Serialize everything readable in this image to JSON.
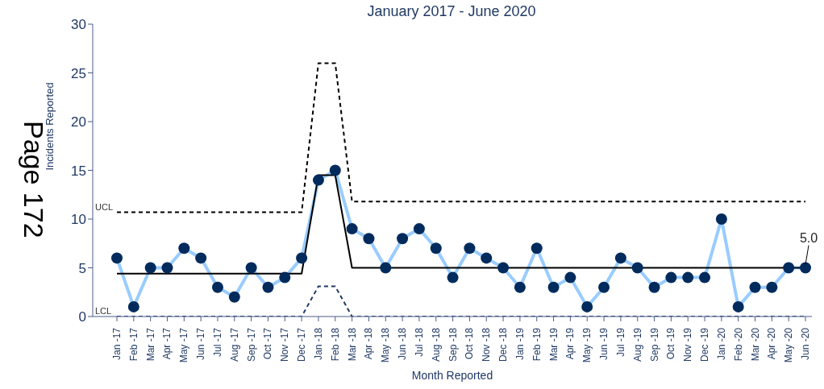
{
  "chart_data": {
    "type": "line",
    "title": "January 2017 - June 2020",
    "xlabel": "Month Reported",
    "ylabel": "Incidents Reported",
    "annotations": [
      "Page 172"
    ],
    "categories": [
      "Jan -17",
      "Feb -17",
      "Mar -17",
      "Apr -17",
      "May -17",
      "Jun -17",
      "Jul -17",
      "Aug -17",
      "Sep -17",
      "Oct -17",
      "Nov -17",
      "Dec -17",
      "Jan -18",
      "Feb -18",
      "Mar -18",
      "Apr -18",
      "May -18",
      "Jun -18",
      "Jul -18",
      "Aug -18",
      "Sep -18",
      "Oct -18",
      "Nov -18",
      "Dec -18",
      "Jan -19",
      "Feb -19",
      "Mar -19",
      "Apr -19",
      "May -19",
      "Jun -19",
      "Jul -19",
      "Aug -19",
      "Sep -19",
      "Oct -19",
      "Nov -19",
      "Dec -19",
      "Jan -20",
      "Feb -20",
      "Mar -20",
      "Apr -20",
      "May -20",
      "Jun -20"
    ],
    "series": [
      {
        "color": "#99ccff",
        "marker": "circle",
        "line_style": "solid",
        "colors": [
          "#002b5c",
          "#002b5c",
          "#002b5c",
          "#002b5c",
          "#002b5c",
          "#002b5c",
          "#002b5c",
          "#002b5c",
          "#002b5c",
          "#002b5c",
          "#002b5c",
          "#002b5c",
          "#002b5c",
          "#002b5c",
          "#002b5c",
          "#002b5c",
          "#002b5c",
          "#002b5c",
          "#002b5c",
          "#002b5c",
          "#002b5c",
          "#002b5c",
          "#002b5c",
          "#002b5c",
          "#002b5c",
          "#002b5c",
          "#002b5c",
          "#002b5c",
          "#002b5c",
          "#002b5c",
          "#002b5c",
          "#002b5c",
          "#002b5c",
          "#002b5c",
          "#002b5c",
          "#002b5c",
          "#002b5c",
          "#002b5c",
          "#002b5c",
          "#002b5c",
          "#002b5c",
          "#002b5c"
        ],
        "values": [
          6,
          1,
          5,
          5,
          7,
          6,
          3,
          2,
          5,
          3,
          4,
          6,
          14,
          15,
          9,
          8,
          5,
          8,
          9,
          7,
          4,
          7,
          6,
          5,
          3,
          7,
          3,
          4,
          1,
          3,
          6,
          5,
          3,
          4,
          4,
          4,
          10,
          1,
          3,
          3,
          5,
          5
        ]
      },
      {
        "color": "#000000",
        "marker": "none",
        "line_style": "solid",
        "values": [
          4.4,
          4.4,
          4.4,
          4.4,
          4.4,
          4.4,
          4.4,
          4.4,
          4.4,
          4.4,
          4.4,
          4.4,
          14.5,
          14.5,
          5.0,
          5.0,
          5.0,
          5.0,
          5.0,
          5.0,
          5.0,
          5.0,
          5.0,
          5.0,
          5.0,
          5.0,
          5.0,
          5.0,
          5.0,
          5.0,
          5.0,
          5.0,
          5.0,
          5.0,
          5.0,
          5.0,
          5.0,
          5.0,
          5.0,
          5.0,
          5.0,
          5.0
        ],
        "value_labels": [
          null,
          null,
          null,
          null,
          null,
          null,
          null,
          null,
          null,
          null,
          null,
          null,
          null,
          null,
          null,
          null,
          null,
          null,
          null,
          null,
          null,
          null,
          null,
          null,
          null,
          null,
          null,
          null,
          null,
          null,
          null,
          null,
          null,
          null,
          null,
          null,
          null,
          null,
          null,
          null,
          null,
          "5.0"
        ]
      },
      {
        "name": "UCL",
        "color": "#000000",
        "marker": "none",
        "line_style": "dashed",
        "values": [
          10.7,
          10.7,
          10.7,
          10.7,
          10.7,
          10.7,
          10.7,
          10.7,
          10.7,
          10.7,
          10.7,
          10.7,
          26,
          26,
          11.8,
          11.8,
          11.8,
          11.8,
          11.8,
          11.8,
          11.8,
          11.8,
          11.8,
          11.8,
          11.8,
          11.8,
          11.8,
          11.8,
          11.8,
          11.8,
          11.8,
          11.8,
          11.8,
          11.8,
          11.8,
          11.8,
          11.8,
          11.8,
          11.8,
          11.8,
          11.8,
          11.8
        ]
      },
      {
        "name": "LCL",
        "color": "#1f3864",
        "marker": "none",
        "line_style": "dashed",
        "values": [
          0,
          0,
          0,
          0,
          0,
          0,
          0,
          0,
          0,
          0,
          0,
          0,
          3.1,
          3.1,
          0,
          0,
          0,
          0,
          0,
          0,
          0,
          0,
          0,
          0,
          0,
          0,
          0,
          0,
          0,
          0,
          0,
          0,
          0,
          0,
          0,
          0,
          0,
          0,
          0,
          0,
          0,
          0
        ]
      }
    ],
    "ylim": [
      0,
      30
    ],
    "yticks": [
      0,
      5,
      10,
      15,
      20,
      25,
      30
    ],
    "grid": false,
    "legend": false
  }
}
